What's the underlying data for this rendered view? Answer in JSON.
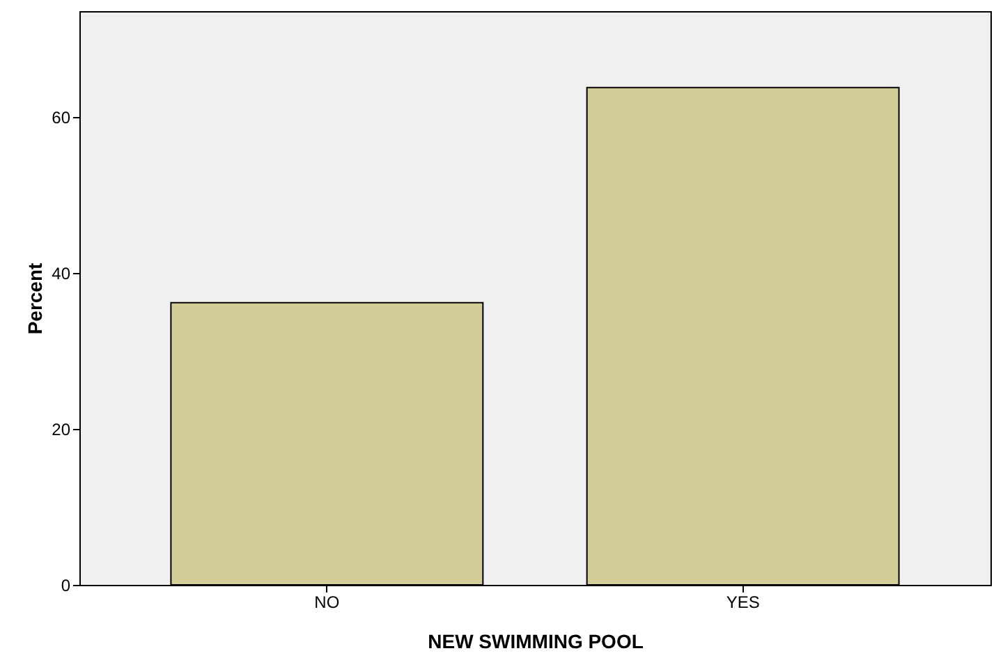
{
  "chart_data": {
    "type": "bar",
    "xlabel": "NEW SWIMMING POOL",
    "ylabel": "Percent",
    "categories": [
      "NO",
      "YES"
    ],
    "values": [
      36.2,
      63.8
    ],
    "color": "#d3ce97",
    "ylim": [
      0,
      73.6
    ],
    "yticks": [
      0,
      20,
      40,
      60
    ],
    "grid": false
  }
}
